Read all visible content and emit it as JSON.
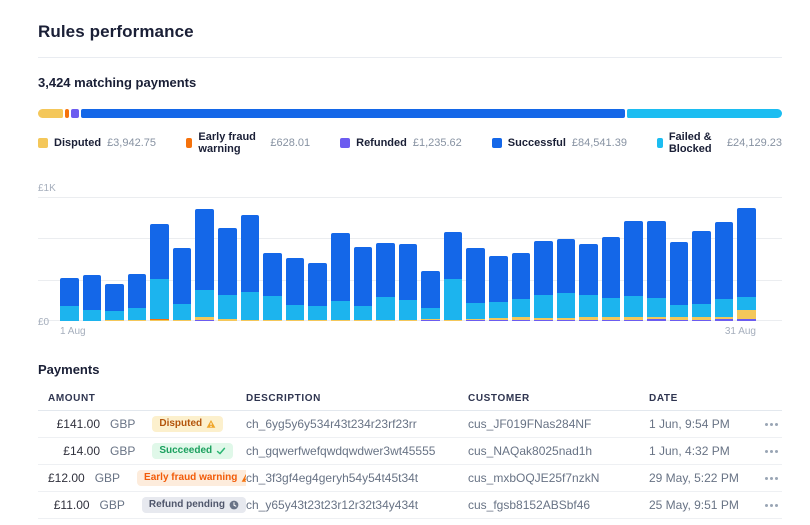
{
  "page": {
    "title": "Rules performance",
    "subtitle": "3,424 matching payments"
  },
  "statuses": [
    {
      "label": "Disputed",
      "amount": "£3,942.75",
      "value": 3942.75,
      "color": "#f4c75a"
    },
    {
      "label": "Early fraud warning",
      "amount": "£628.01",
      "value": 628.01,
      "color": "#f5720c"
    },
    {
      "label": "Refunded",
      "amount": "£1,235.62",
      "value": 1235.62,
      "color": "#6c5cf0"
    },
    {
      "label": "Successful",
      "amount": "£84,541.39",
      "value": 84541.39,
      "color": "#1467e8"
    },
    {
      "label": "Failed & Blocked",
      "amount": "£24,129.23",
      "value": 24129.23,
      "color": "#1cbdf1"
    }
  ],
  "chart_data": {
    "type": "bar",
    "stacked": true,
    "title": "Matching payments per day (£)",
    "y_axis": {
      "zero_label": "£0",
      "top_label": "£1K",
      "max": 1000,
      "gridlines": [
        0,
        333,
        667,
        1000
      ]
    },
    "x_axis": {
      "start_label": "1 Aug",
      "end_label": "31 Aug",
      "days": 31
    },
    "series": [
      {
        "key": "refunded",
        "name": "Refunded",
        "color": "#6c5cf0",
        "values": [
          0,
          0,
          0,
          0,
          0,
          0,
          12,
          0,
          0,
          0,
          4,
          0,
          4,
          0,
          4,
          0,
          6,
          0,
          6,
          8,
          8,
          10,
          10,
          12,
          10,
          12,
          14,
          12,
          12,
          14,
          18
        ]
      },
      {
        "key": "disputed",
        "name": "Disputed",
        "color": "#f4c75a",
        "values": [
          0,
          0,
          8,
          10,
          12,
          10,
          20,
          15,
          8,
          8,
          8,
          8,
          8,
          8,
          8,
          8,
          10,
          12,
          12,
          18,
          28,
          18,
          14,
          18,
          20,
          18,
          22,
          18,
          18,
          18,
          70
        ]
      },
      {
        "key": "early_fraud_warning",
        "name": "Early fraud warning",
        "color": "#f5720c",
        "values": [
          0,
          0,
          0,
          0,
          3,
          0,
          3,
          0,
          0,
          0,
          0,
          0,
          0,
          0,
          0,
          0,
          0,
          0,
          0,
          0,
          0,
          0,
          0,
          0,
          0,
          0,
          0,
          0,
          0,
          0,
          0
        ]
      },
      {
        "key": "failed_blocked",
        "name": "Failed & Blocked",
        "color": "#1cb4ee",
        "values": [
          120,
          90,
          75,
          95,
          325,
          125,
          215,
          195,
          225,
          190,
          120,
          112,
          150,
          112,
          180,
          160,
          90,
          330,
          130,
          130,
          140,
          180,
          200,
          180,
          160,
          175,
          150,
          100,
          110,
          150,
          105
        ]
      },
      {
        "key": "successful",
        "name": "Successful",
        "color": "#1467e8",
        "values": [
          230,
          285,
          215,
          275,
          440,
          455,
          650,
          540,
          625,
          350,
          375,
          350,
          545,
          480,
          440,
          455,
          300,
          380,
          440,
          365,
          375,
          435,
          435,
          415,
          485,
          600,
          625,
          505,
          585,
          615,
          720
        ]
      }
    ]
  },
  "table": {
    "heading": "Payments",
    "columns": [
      "AMOUNT",
      "DESCRIPTION",
      "CUSTOMER",
      "DATE"
    ],
    "rows": [
      {
        "amount": "£141.00",
        "currency": "GBP",
        "status": {
          "label": "Disputed",
          "type": "disputed",
          "icon": "warning"
        },
        "description": "ch_6yg5y6y534r43t234r23rf23rr",
        "customer": "cus_JF019FNas284NF",
        "date": "1 Jun, 9:54 PM"
      },
      {
        "amount": "£14.00",
        "currency": "GBP",
        "status": {
          "label": "Succeeded",
          "type": "succeeded",
          "icon": "check"
        },
        "description": "ch_gqwerfwefqwdqwdwer3wt45555",
        "customer": "cus_NAQak8025nad1h",
        "date": "1 Jun, 4:32 PM"
      },
      {
        "amount": "£12.00",
        "currency": "GBP",
        "status": {
          "label": "Early fraud warning",
          "type": "early-fraud-warning",
          "icon": "warning"
        },
        "description": "ch_3f3gf4eg4geryh54y54t45t34t",
        "customer": "cus_mxbOQJE25f7nzkN",
        "date": "29 May, 5:22 PM"
      },
      {
        "amount": "£11.00",
        "currency": "GBP",
        "status": {
          "label": "Refund pending",
          "type": "refund-pending",
          "icon": "clock"
        },
        "description": "ch_y65y43t23t23r12r32t34y434t",
        "customer": "cus_fgsb8152ABSbf46",
        "date": "25 May, 9:51 PM"
      }
    ]
  }
}
